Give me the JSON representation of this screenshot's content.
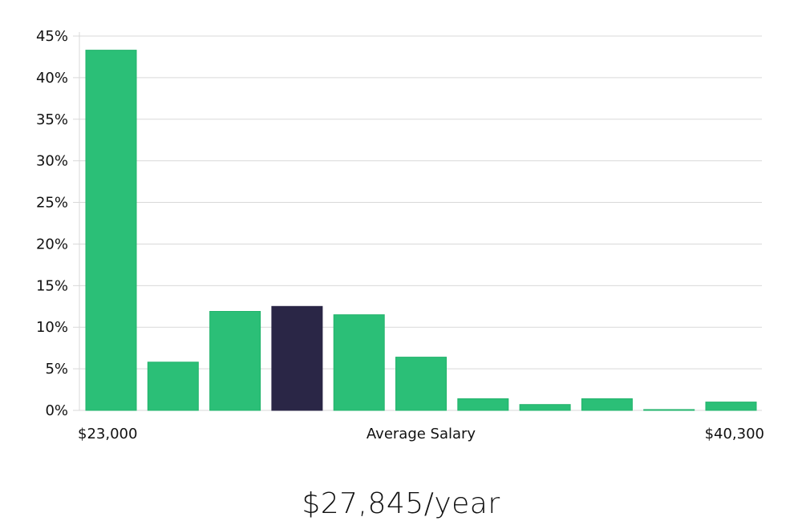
{
  "chart_data": {
    "type": "bar",
    "title": "",
    "xlabel": "Average Salary",
    "ylabel": "",
    "x_start_label": "$23,000",
    "x_end_label": "$40,300",
    "ylim": [
      0,
      45
    ],
    "y_ticks": [
      "0%",
      "5%",
      "10%",
      "15%",
      "20%",
      "25%",
      "30%",
      "35%",
      "40%",
      "45%"
    ],
    "y_tick_values": [
      0,
      5,
      10,
      15,
      20,
      25,
      30,
      35,
      40,
      45
    ],
    "values": [
      43.3,
      5.8,
      11.9,
      12.5,
      11.5,
      6.4,
      1.4,
      0.7,
      1.4,
      0.1,
      1.0
    ],
    "highlight_index": 3,
    "colors": {
      "bar": "#2bbf77",
      "bar_edge": "#22b36b",
      "highlight": "#2a2646"
    },
    "grid": true,
    "legend": "none"
  },
  "summary": {
    "salary_text": "$27,845/year"
  }
}
